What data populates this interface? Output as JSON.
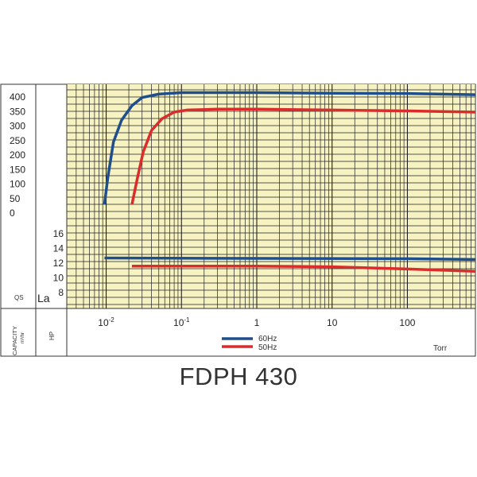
{
  "title": "FDPH 430",
  "capacity_axis": {
    "label": "QS",
    "ticks": [
      "400",
      "350",
      "300",
      "250",
      "200",
      "150",
      "100",
      "50",
      "0"
    ]
  },
  "power_axis": {
    "label": "La",
    "ticks": [
      "16",
      "14",
      "12",
      "10",
      "8"
    ]
  },
  "bottom_labels": {
    "capacity_title": "CAPACITY",
    "capacity_unit": "m³/hr",
    "hp": "HP",
    "x_unit": "Torr"
  },
  "colors": {
    "background": "#f6f2c2",
    "grid": "#222222",
    "series_60hz": "#1f4e8c",
    "series_50hz": "#d92d2d"
  },
  "chart_data": {
    "type": "line",
    "x_scale": "log",
    "xlim": [
      0.003,
      800
    ],
    "x_ticks": [
      {
        "value": 0.01,
        "base": "10",
        "exp": "-2"
      },
      {
        "value": 0.1,
        "base": "10",
        "exp": "-1"
      },
      {
        "value": 1,
        "label": "1"
      },
      {
        "value": 10,
        "label": "10"
      },
      {
        "value": 100,
        "label": "100"
      }
    ],
    "xlabel": "Torr",
    "capacity": {
      "ylabel": "QS",
      "ylim": [
        0,
        400
      ],
      "series": [
        {
          "name": "60Hz",
          "color": "#1f4e8c",
          "points": [
            [
              0.0095,
              30
            ],
            [
              0.0105,
              120
            ],
            [
              0.0125,
              245
            ],
            [
              0.016,
              320
            ],
            [
              0.022,
              370
            ],
            [
              0.03,
              398
            ],
            [
              0.05,
              410
            ],
            [
              0.1,
              415
            ],
            [
              1,
              415
            ],
            [
              10,
              413
            ],
            [
              100,
              412
            ],
            [
              800,
              408
            ]
          ]
        },
        {
          "name": "50Hz",
          "color": "#d92d2d",
          "points": [
            [
              0.022,
              30
            ],
            [
              0.026,
              120
            ],
            [
              0.031,
              210
            ],
            [
              0.04,
              285
            ],
            [
              0.055,
              325
            ],
            [
              0.08,
              348
            ],
            [
              0.12,
              355
            ],
            [
              0.3,
              358
            ],
            [
              1,
              358
            ],
            [
              10,
              355
            ],
            [
              100,
              352
            ],
            [
              800,
              348
            ]
          ]
        }
      ]
    },
    "power": {
      "ylabel": "La",
      "ylim": [
        8,
        16
      ],
      "series": [
        {
          "name": "60Hz",
          "color": "#1f4e8c",
          "points": [
            [
              0.0095,
              12.7
            ],
            [
              1,
              12.65
            ],
            [
              100,
              12.6
            ],
            [
              800,
              12.5
            ]
          ]
        },
        {
          "name": "50Hz",
          "color": "#d92d2d",
          "points": [
            [
              0.022,
              11.6
            ],
            [
              1,
              11.6
            ],
            [
              10,
              11.5
            ],
            [
              100,
              11.2
            ],
            [
              800,
              10.9
            ]
          ]
        }
      ]
    }
  }
}
